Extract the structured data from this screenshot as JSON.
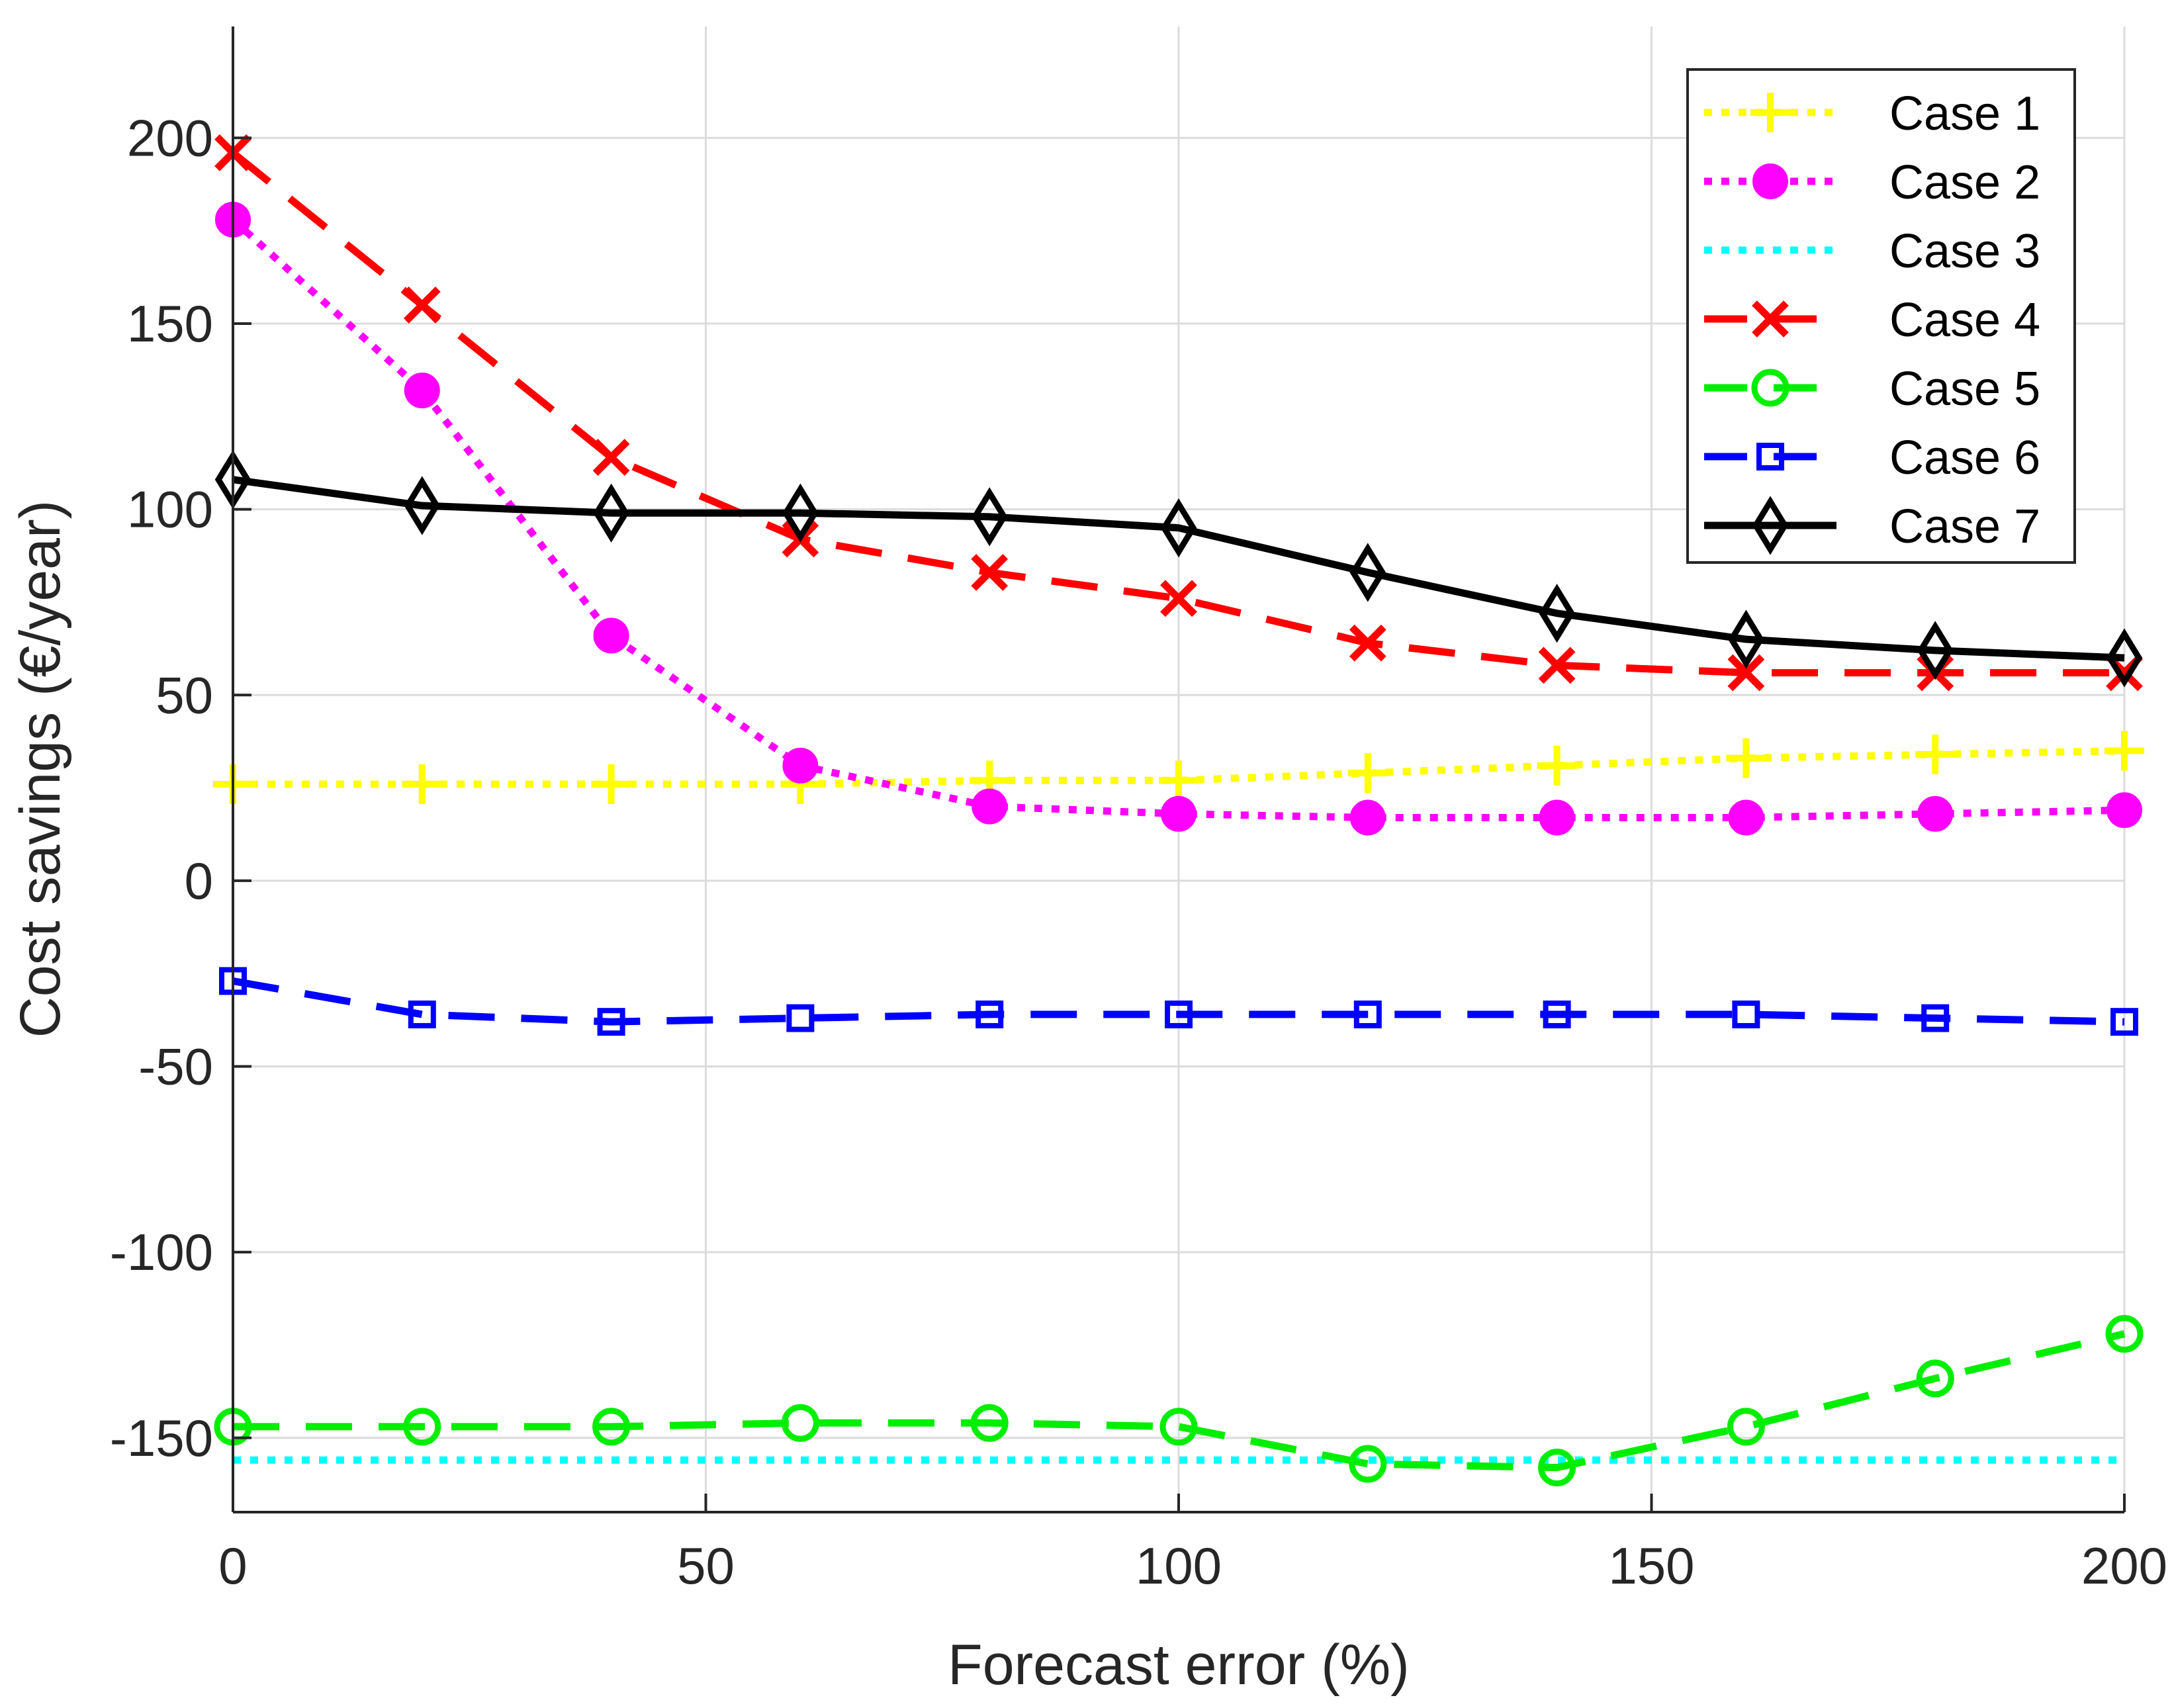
{
  "chart_data": {
    "type": "line",
    "title": "",
    "xlabel": "Forecast error (%)",
    "ylabel": "Cost savings (€/year)",
    "xlim": [
      0,
      200
    ],
    "ylim": [
      -170,
      230
    ],
    "xticks": [
      0,
      50,
      100,
      150,
      200
    ],
    "yticks": [
      -150,
      -100,
      -50,
      0,
      50,
      100,
      150,
      200
    ],
    "grid": true,
    "legend_position": "top-right",
    "x": [
      0,
      20,
      40,
      60,
      80,
      100,
      120,
      140,
      160,
      180,
      200
    ],
    "series": [
      {
        "name": "Case 1",
        "color": "#ffff00",
        "line": "dotted",
        "marker": "plus",
        "values": [
          26,
          26,
          26,
          26,
          27,
          27,
          29,
          31,
          33,
          34,
          35
        ]
      },
      {
        "name": "Case 2",
        "color": "#ff00ff",
        "line": "dotted",
        "marker": "circle-filled",
        "values": [
          178,
          132,
          66,
          31,
          20,
          18,
          17,
          17,
          17,
          18,
          19
        ]
      },
      {
        "name": "Case 3",
        "color": "#00ffff",
        "line": "dotted",
        "marker": "none",
        "values": [
          -156,
          -156,
          -156,
          -156,
          -156,
          -156,
          -156,
          -156,
          -156,
          -156,
          -156
        ]
      },
      {
        "name": "Case 4",
        "color": "#ff0000",
        "line": "dashed",
        "marker": "x",
        "values": [
          196,
          155,
          114,
          92,
          83,
          76,
          64,
          58,
          56,
          56,
          56
        ]
      },
      {
        "name": "Case 5",
        "color": "#00ee00",
        "line": "dashed",
        "marker": "circle-open",
        "values": [
          -147,
          -147,
          -147,
          -146,
          -146,
          -147,
          -157,
          -158,
          -147,
          -134,
          -122
        ]
      },
      {
        "name": "Case 6",
        "color": "#0000ff",
        "line": "dashed",
        "marker": "square-open",
        "values": [
          -27,
          -36,
          -38,
          -37,
          -36,
          -36,
          -36,
          -36,
          -36,
          -37,
          -38
        ]
      },
      {
        "name": "Case 7",
        "color": "#000000",
        "line": "solid",
        "marker": "diamond-open",
        "values": [
          108,
          101,
          99,
          99,
          98,
          95,
          83,
          72,
          65,
          62,
          60
        ]
      }
    ]
  }
}
